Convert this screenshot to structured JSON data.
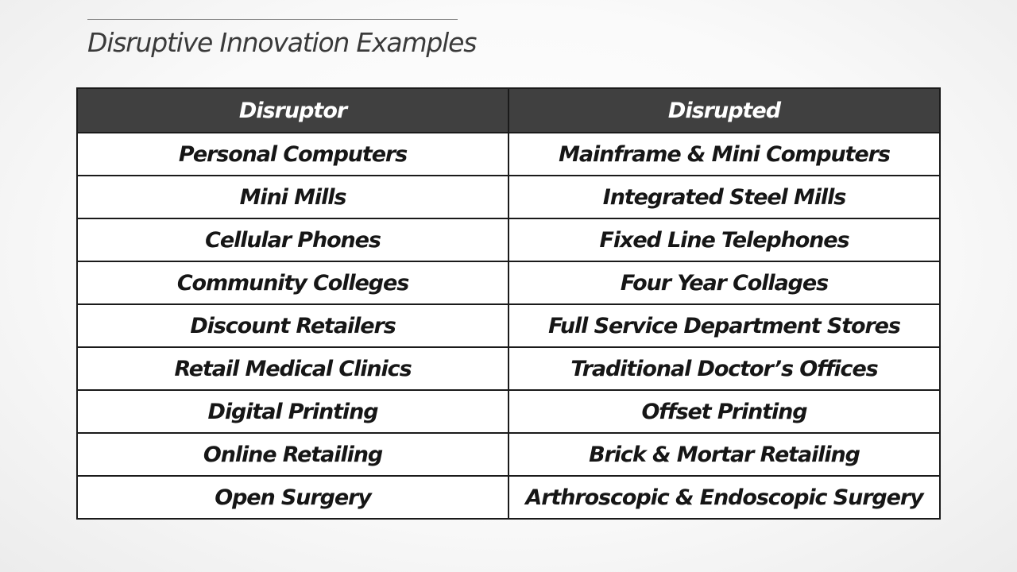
{
  "slide": {
    "title": "Disruptive Innovation Examples"
  },
  "table": {
    "headers": [
      "Disruptor",
      "Disrupted"
    ],
    "rows": [
      [
        "Personal Computers",
        "Mainframe & Mini Computers"
      ],
      [
        "Mini Mills",
        "Integrated Steel Mills"
      ],
      [
        "Cellular Phones",
        "Fixed Line Telephones"
      ],
      [
        "Community Colleges",
        "Four Year Collages"
      ],
      [
        "Discount Retailers",
        "Full Service Department Stores"
      ],
      [
        "Retail Medical Clinics",
        "Traditional Doctor’s Offices"
      ],
      [
        "Digital Printing",
        "Offset Printing"
      ],
      [
        "Online Retailing",
        "Brick & Mortar Retailing"
      ],
      [
        "Open Surgery",
        "Arthroscopic & Endoscopic Surgery"
      ]
    ]
  },
  "colors": {
    "header_background": "#404040",
    "header_text": "#ffffff",
    "cell_background": "#ffffff",
    "border": "#1a1a1a",
    "title_text": "#3a3a3a"
  }
}
